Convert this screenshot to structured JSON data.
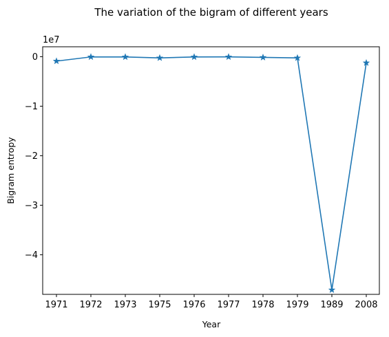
{
  "chart_data": {
    "type": "line",
    "title": "The variation of the bigram of different years",
    "xlabel": "Year",
    "ylabel": "Bigram entropy",
    "y_offset_label": "1e7",
    "categories": [
      "1971",
      "1972",
      "1973",
      "1975",
      "1976",
      "1977",
      "1978",
      "1979",
      "1989",
      "2008"
    ],
    "series": [
      {
        "values": [
          -900000,
          -50000,
          -60000,
          -250000,
          -60000,
          -40000,
          -150000,
          -250000,
          -47100000,
          -1250000
        ],
        "color": "#1f77b4",
        "marker": "star"
      }
    ],
    "yticks": [
      0,
      -1,
      -2,
      -3,
      -4
    ],
    "ytick_labels": [
      "0",
      "−1",
      "−2",
      "−3",
      "−4"
    ],
    "ylim": [
      -48000000,
      2000000
    ],
    "grid": false
  }
}
